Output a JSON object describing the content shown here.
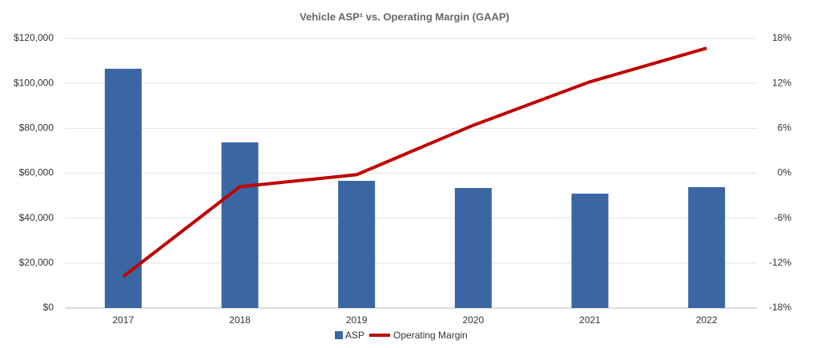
{
  "chart_data": {
    "type": "bar",
    "title": "Vehicle ASP¹ vs. Operating Margin (GAAP)",
    "categories": [
      "2017",
      "2018",
      "2019",
      "2020",
      "2021",
      "2022"
    ],
    "series": [
      {
        "name": "ASP",
        "type": "bar",
        "color": "#3a66a3",
        "values": [
          106500,
          73700,
          56600,
          53400,
          50900,
          53800
        ]
      },
      {
        "name": "Operating Margin",
        "type": "line",
        "axis": "y2",
        "color": "#c00000",
        "values": [
          -13.8,
          -1.8,
          -0.2,
          6.4,
          12.2,
          16.7
        ]
      }
    ],
    "ylim": [
      0,
      120000
    ],
    "yticks": [
      {
        "value": 0,
        "label": "$0"
      },
      {
        "value": 20000,
        "label": "$20,000"
      },
      {
        "value": 40000,
        "label": "$40,000"
      },
      {
        "value": 60000,
        "label": "$60,000"
      },
      {
        "value": 80000,
        "label": "$80,000"
      },
      {
        "value": 100000,
        "label": "$100,000"
      },
      {
        "value": 120000,
        "label": "$120,000"
      }
    ],
    "y2lim": [
      -18,
      18
    ],
    "y2ticks": [
      {
        "value": -18,
        "label": "-18%"
      },
      {
        "value": -12,
        "label": "-12%"
      },
      {
        "value": -6,
        "label": "-6%"
      },
      {
        "value": 0,
        "label": "0%"
      },
      {
        "value": 6,
        "label": "6%"
      },
      {
        "value": 12,
        "label": "12%"
      },
      {
        "value": 18,
        "label": "18%"
      }
    ],
    "grid": true,
    "legend": "bottom"
  }
}
